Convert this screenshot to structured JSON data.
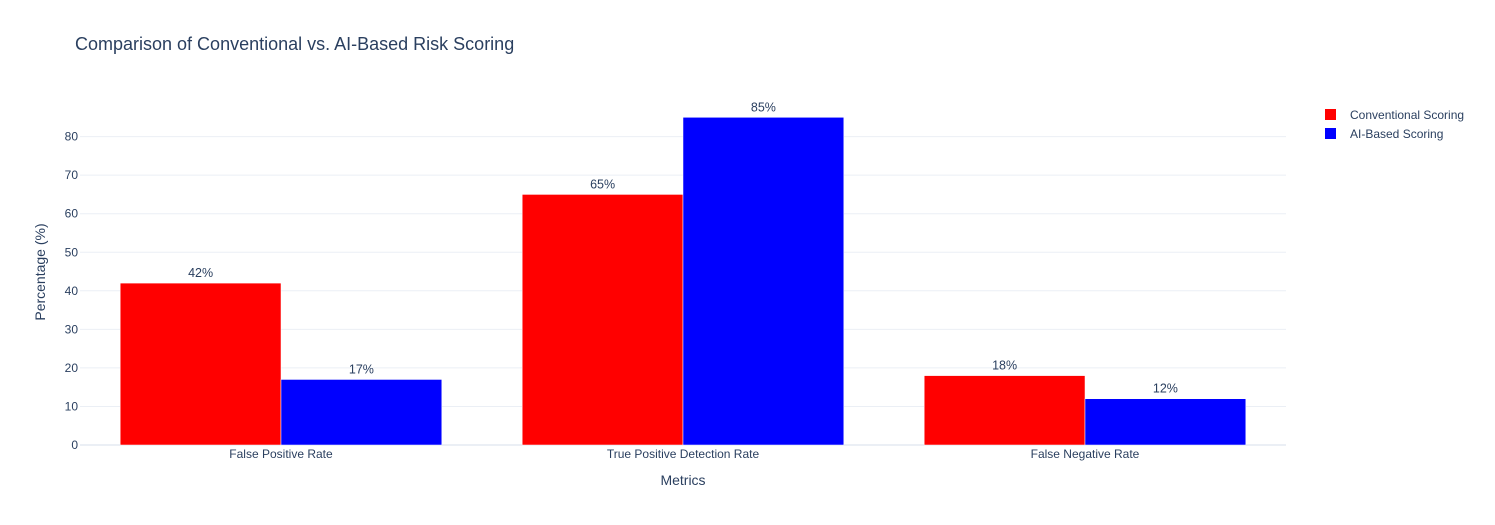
{
  "chart_data": {
    "type": "bar",
    "title": "Comparison of Conventional vs. AI-Based Risk Scoring",
    "xlabel": "Metrics",
    "ylabel": "Percentage (%)",
    "categories": [
      "False Positive Rate",
      "True Positive Detection Rate",
      "False Negative Rate"
    ],
    "series": [
      {
        "name": "Conventional Scoring",
        "color": "#ff0000",
        "values": [
          42,
          65,
          18
        ],
        "labels": [
          "42%",
          "65%",
          "18%"
        ]
      },
      {
        "name": "AI-Based Scoring",
        "color": "#0000ff",
        "values": [
          17,
          85,
          12
        ],
        "labels": [
          "17%",
          "85%",
          "12%"
        ]
      }
    ],
    "ylim": [
      0,
      89.5
    ],
    "yticks": [
      0,
      10,
      20,
      30,
      40,
      50,
      60,
      70,
      80
    ],
    "grid": true,
    "legend_position": "top-right"
  }
}
